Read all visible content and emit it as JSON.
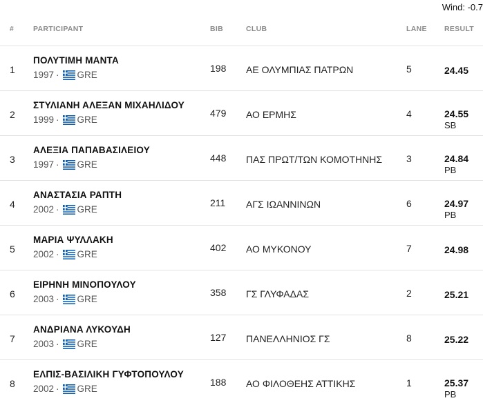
{
  "wind": "Wind: -0.7",
  "headers": {
    "rank": "#",
    "participant": "PARTICIPANT",
    "bib": "BIB",
    "club": "CLUB",
    "lane": "LANE",
    "result": "RESULT"
  },
  "separator": "·",
  "country_flag_icon": "greece-flag-icon",
  "colors": {
    "flag_blue": "#0D5EAF",
    "flag_white": "#FFFFFF",
    "divider": "#e2e2e2",
    "header_text": "#8a8a8a"
  },
  "rows": [
    {
      "rank": "1",
      "name": "ΠΟΛΥΤΙΜΗ ΜΑΝΤΑ",
      "year": "1997",
      "country": "GRE",
      "bib": "198",
      "club": "ΑΕ ΟΛΥΜΠΙΑΣ ΠΑΤΡΩΝ",
      "lane": "5",
      "result": "24.45",
      "note": ""
    },
    {
      "rank": "2",
      "name": "ΣΤΥΛΙΑΝΗ ΑΛΕΞΑΝ ΜΙΧΑΗΛΙΔΟΥ",
      "year": "1999",
      "country": "GRE",
      "bib": "479",
      "club": "ΑΟ ΕΡΜΗΣ",
      "lane": "4",
      "result": "24.55",
      "note": "SB"
    },
    {
      "rank": "3",
      "name": "ΑΛΕΞΙΑ ΠΑΠΑΒΑΣΙΛΕΙΟΥ",
      "year": "1997",
      "country": "GRE",
      "bib": "448",
      "club": "ΠΑΣ ΠΡΩΤ/ΤΩΝ ΚΟΜΟΤΗΝΗΣ",
      "lane": "3",
      "result": "24.84",
      "note": "PB"
    },
    {
      "rank": "4",
      "name": "ΑΝΑΣΤΑΣΙΑ ΡΑΠΤΗ",
      "year": "2002",
      "country": "GRE",
      "bib": "211",
      "club": "ΑΓΣ ΙΩΑΝΝΙΝΩΝ",
      "lane": "6",
      "result": "24.97",
      "note": "PB"
    },
    {
      "rank": "5",
      "name": "ΜΑΡΙΑ ΨΥΛΛΑΚΗ",
      "year": "2002",
      "country": "GRE",
      "bib": "402",
      "club": "ΑΟ ΜΥΚΟΝΟΥ",
      "lane": "7",
      "result": "24.98",
      "note": ""
    },
    {
      "rank": "6",
      "name": "ΕΙΡΗΝΗ ΜΙΝΟΠΟΥΛΟΥ",
      "year": "2003",
      "country": "GRE",
      "bib": "358",
      "club": "ΓΣ ΓΛΥΦΑΔΑΣ",
      "lane": "2",
      "result": "25.21",
      "note": ""
    },
    {
      "rank": "7",
      "name": "ΑΝΔΡΙΑΝΑ ΛΥΚΟΥΔΗ",
      "year": "2003",
      "country": "GRE",
      "bib": "127",
      "club": "ΠΑΝΕΛΛΗΝΙΟΣ ΓΣ",
      "lane": "8",
      "result": "25.22",
      "note": ""
    },
    {
      "rank": "8",
      "name": "ΕΛΠΙΣ-ΒΑΣΙΛΙΚΗ ΓΥΦΤΟΠΟΥΛΟΥ",
      "year": "2002",
      "country": "GRE",
      "bib": "188",
      "club": "ΑΟ ΦΙΛΟΘΕΗΣ ΑΤΤΙΚΗΣ",
      "lane": "1",
      "result": "25.37",
      "note": "PB"
    }
  ]
}
